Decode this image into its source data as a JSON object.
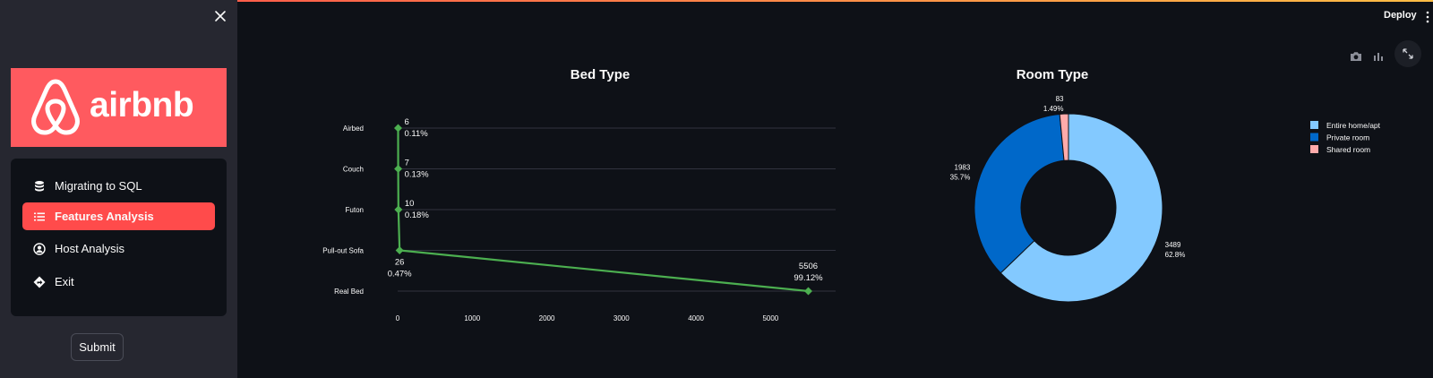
{
  "app": {
    "deploy_label": "Deploy"
  },
  "sidebar": {
    "logo_text": "airbnb",
    "items": [
      {
        "label": "Migrating to SQL",
        "icon": "database-icon",
        "active": false
      },
      {
        "label": "Features Analysis",
        "icon": "list-icon",
        "active": true
      },
      {
        "label": "Host Analysis",
        "icon": "user-circle-icon",
        "active": false
      },
      {
        "label": "Exit",
        "icon": "diamond-arrow-icon",
        "active": false
      }
    ],
    "submit_label": "Submit"
  },
  "colors": {
    "accent": "#ff4b4b",
    "brand": "#ff5a5f",
    "line": "#4caf50"
  },
  "chart_data": [
    {
      "type": "line",
      "title": "Bed Type",
      "categories": [
        "Airbed",
        "Couch",
        "Futon",
        "Pull-out Sofa",
        "Real Bed"
      ],
      "values": [
        6,
        7,
        10,
        26,
        5506
      ],
      "value_labels": [
        "6",
        "7",
        "10",
        "26",
        "5506"
      ],
      "percent_labels": [
        "0.11%",
        "0.13%",
        "0.18%",
        "0.47%",
        "99.12%"
      ],
      "orientation": "horizontal",
      "xlim": [
        0,
        5500
      ],
      "xticks": [
        0,
        1000,
        2000,
        3000,
        4000,
        5000
      ],
      "xtick_labels": [
        "0",
        "1000",
        "2000",
        "3000",
        "4000",
        "5000"
      ],
      "grid": true
    },
    {
      "type": "pie",
      "title": "Room Type",
      "donut": true,
      "labels": [
        "Entire home/apt",
        "Private room",
        "Shared room"
      ],
      "values": [
        3489,
        1983,
        83
      ],
      "value_labels": [
        "3489",
        "1983",
        "83"
      ],
      "percent_labels": [
        "62.8%",
        "35.7%",
        "1.49%"
      ],
      "colors": [
        "#83c9ff",
        "#0068c9",
        "#ffabab"
      ],
      "legend_placement": "right"
    }
  ]
}
